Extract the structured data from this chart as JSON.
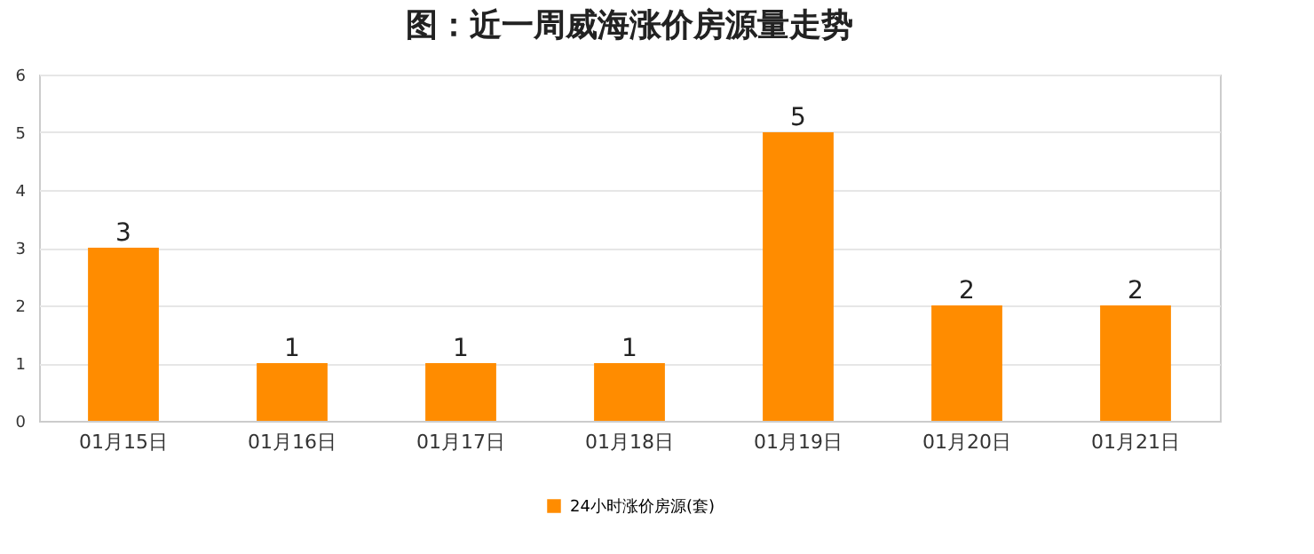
{
  "chart_data": {
    "type": "bar",
    "title": "图：近一周威海涨价房源量走势",
    "categories": [
      "01月15日",
      "01月16日",
      "01月17日",
      "01月18日",
      "01月19日",
      "01月20日",
      "01月21日"
    ],
    "series": [
      {
        "name": "24小时涨价房源(套)",
        "color": "#ff8c00",
        "values": [
          3,
          1,
          1,
          1,
          5,
          2,
          2
        ]
      }
    ],
    "ylim": [
      0,
      6
    ],
    "yticks": [
      0,
      1,
      2,
      3,
      4,
      5,
      6
    ],
    "grid": "y",
    "legend": "bottom",
    "data_labels": true
  }
}
